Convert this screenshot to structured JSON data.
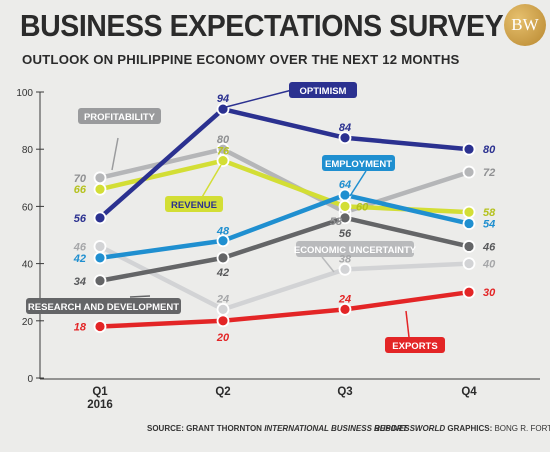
{
  "header": {
    "title": "BUSINESS EXPECTATIONS SURVEY",
    "subtitle": "OUTLOOK ON PHILIPPINE ECONOMY OVER THE NEXT 12 MONTHS",
    "logo": "BW"
  },
  "footer": {
    "source_prefix": "SOURCE: GRANT THORNTON ",
    "source_report": "INTERNATIONAL BUSINESS REPORT",
    "credits_brand": "BUSINESSWORLD",
    "credits_suffix": " GRAPHICS: ",
    "credits_name": "BONG R. FORTIN"
  },
  "chart_data": {
    "type": "line",
    "categories": [
      "Q1\n2016",
      "Q2",
      "Q3",
      "Q4"
    ],
    "ylim": [
      0,
      100
    ],
    "yticks": [
      0,
      20,
      40,
      60,
      80,
      100
    ],
    "grid": false,
    "series": [
      {
        "name": "PROFITABILITY",
        "values": [
          70,
          80,
          58,
          72
        ],
        "color": "#b5b6b8",
        "textcolor": "#8f9092",
        "labelcolor": "#9a9b9d"
      },
      {
        "name": "ECONOMIC UNCERTAINTY",
        "values": [
          46,
          24,
          38,
          40
        ],
        "color": "#d2d3d5",
        "textcolor": "#a6a7a9",
        "labelcolor": "#b9babc"
      },
      {
        "name": "REVENUE",
        "values": [
          66,
          76,
          60,
          58
        ],
        "color": "#d3de35",
        "textcolor": "#b5c21e",
        "labelcolor": "#d3de35"
      },
      {
        "name": "RESEARCH AND DEVELOPMENT",
        "values": [
          34,
          42,
          56,
          46
        ],
        "color": "#646567",
        "textcolor": "#58595b",
        "labelcolor": "#646567"
      },
      {
        "name": "EMPLOYMENT",
        "values": [
          42,
          48,
          64,
          54
        ],
        "color": "#1f8fd0",
        "textcolor": "#1f8fd0",
        "labelcolor": "#1f8fd0"
      },
      {
        "name": "EXPORTS",
        "values": [
          18,
          20,
          24,
          30
        ],
        "color": "#e32526",
        "textcolor": "#e32526",
        "labelcolor": "#e32526"
      },
      {
        "name": "OPTIMISM",
        "values": [
          56,
          94,
          84,
          80
        ],
        "color": "#2b3190",
        "textcolor": "#2b3190",
        "labelcolor": "#2b3190"
      }
    ]
  }
}
